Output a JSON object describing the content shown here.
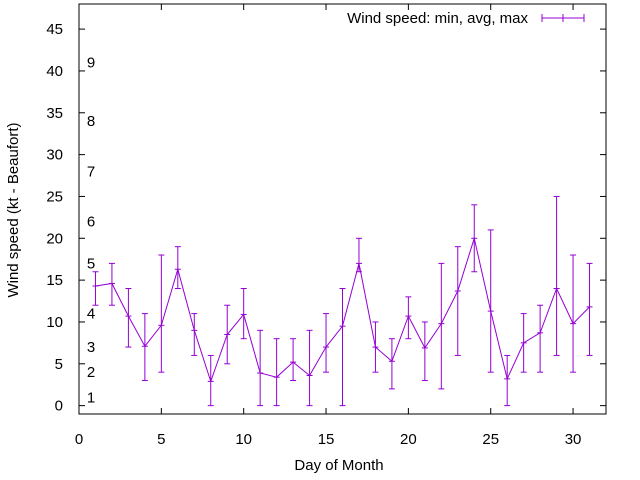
{
  "chart_data": {
    "type": "line",
    "title": "",
    "xlabel": "Day of Month",
    "ylabel": "Wind speed (kt - Beaufort)",
    "xlim": [
      0,
      32
    ],
    "ylim": [
      -1,
      48
    ],
    "xticks": [
      "0",
      "5",
      "10",
      "15",
      "20",
      "25",
      "30"
    ],
    "yticks": [
      "0",
      "5",
      "10",
      "15",
      "20",
      "25",
      "30",
      "35",
      "40",
      "45"
    ],
    "grid": false,
    "legend_position": "top-right",
    "color": "#9400d3",
    "beaufort_scale": [
      {
        "label": "1",
        "y": 1
      },
      {
        "label": "2",
        "y": 4
      },
      {
        "label": "3",
        "y": 7
      },
      {
        "label": "4",
        "y": 11
      },
      {
        "label": "5",
        "y": 17
      },
      {
        "label": "6",
        "y": 22
      },
      {
        "label": "7",
        "y": 28
      },
      {
        "label": "8",
        "y": 34
      },
      {
        "label": "9",
        "y": 41
      }
    ],
    "series": [
      {
        "name": "Wind speed: min, avg, max",
        "x": [
          1,
          2,
          3,
          4,
          5,
          6,
          7,
          8,
          9,
          10,
          11,
          12,
          13,
          14,
          15,
          16,
          17,
          18,
          19,
          20,
          21,
          22,
          23,
          24,
          25,
          26,
          27,
          28,
          29,
          30,
          31
        ],
        "avg": [
          14.3,
          14.6,
          10.7,
          7.1,
          9.6,
          16.3,
          9,
          2.9,
          8.5,
          10.9,
          3.9,
          3.4,
          5.2,
          3.6,
          7,
          9.5,
          17,
          7,
          5.3,
          10.7,
          6.9,
          9.8,
          13.7,
          20,
          11.3,
          3.2,
          7.5,
          8.7,
          14,
          9.8,
          11.8
        ],
        "min": [
          12,
          12,
          7,
          3,
          4,
          14,
          6,
          0,
          5,
          8,
          0,
          0,
          3,
          0,
          4,
          0,
          16,
          4,
          2,
          8,
          3,
          2,
          6,
          16,
          4,
          0,
          4,
          4,
          6,
          4,
          6
        ],
        "max": [
          16,
          17,
          14,
          11,
          18,
          19,
          11,
          6,
          12,
          14,
          9,
          8,
          8,
          9,
          11,
          14,
          20,
          10,
          8,
          13,
          10,
          17,
          19,
          24,
          21,
          6,
          11,
          12,
          25,
          18,
          17
        ]
      }
    ]
  }
}
